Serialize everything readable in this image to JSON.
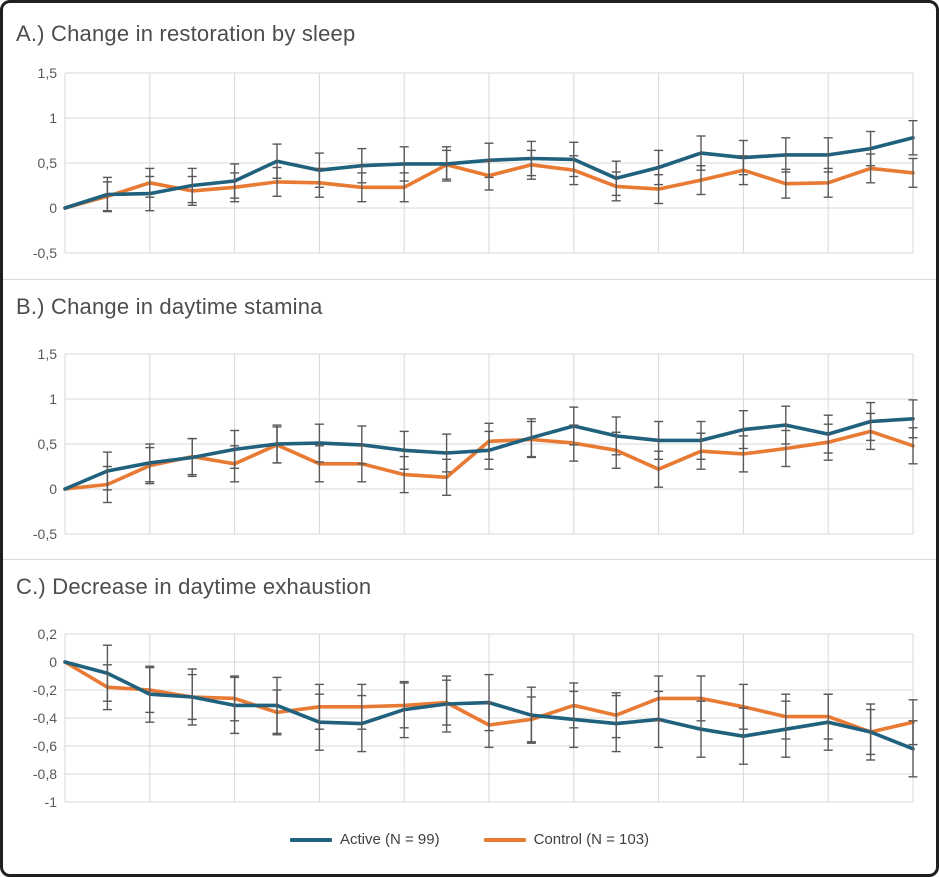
{
  "figure": {
    "background": "#ffffff",
    "border_color": "#1f1f1f",
    "gridline_color": "#d9d9d9",
    "errorbar_color": "#595959",
    "active_color": "#20617d",
    "control_color": "#e87a33"
  },
  "legend": {
    "position": "bottom-center",
    "items": [
      {
        "label": "Active (N = 99)",
        "color": "#20617d"
      },
      {
        "label": "Control (N = 103)",
        "color": "#e87a33"
      }
    ]
  },
  "chart_data": [
    {
      "id": "A",
      "type": "line",
      "title": "A.) Change in restoration by sleep",
      "x": [
        0,
        1,
        2,
        3,
        4,
        5,
        6,
        7,
        8,
        9,
        10,
        11,
        12,
        13,
        14,
        15,
        16,
        17,
        18,
        19,
        20
      ],
      "xlabel": "",
      "ylabel": "",
      "ylim": [
        -0.5,
        1.5
      ],
      "yticks": [
        {
          "v": 1.5,
          "label": "1,5"
        },
        {
          "v": 1.0,
          "label": "1"
        },
        {
          "v": 0.5,
          "label": "0,5"
        },
        {
          "v": 0.0,
          "label": "0"
        },
        {
          "v": -0.5,
          "label": "-0,5"
        }
      ],
      "grid": true,
      "series": [
        {
          "name": "Active (N = 99)",
          "color": "#20617d",
          "err": 0.19,
          "values": [
            0,
            0.15,
            0.16,
            0.25,
            0.3,
            0.52,
            0.42,
            0.47,
            0.49,
            0.49,
            0.53,
            0.55,
            0.54,
            0.33,
            0.45,
            0.61,
            0.56,
            0.59,
            0.59,
            0.66,
            0.78
          ]
        },
        {
          "name": "Control (N = 103)",
          "color": "#e87a33",
          "err": 0.16,
          "values": [
            0,
            0.13,
            0.28,
            0.19,
            0.23,
            0.29,
            0.28,
            0.23,
            0.23,
            0.48,
            0.36,
            0.48,
            0.42,
            0.24,
            0.21,
            0.31,
            0.42,
            0.27,
            0.28,
            0.44,
            0.39
          ]
        }
      ]
    },
    {
      "id": "B",
      "type": "line",
      "title": "B.) Change in daytime stamina",
      "x": [
        0,
        1,
        2,
        3,
        4,
        5,
        6,
        7,
        8,
        9,
        10,
        11,
        12,
        13,
        14,
        15,
        16,
        17,
        18,
        19,
        20
      ],
      "xlabel": "",
      "ylabel": "",
      "ylim": [
        -0.5,
        1.5
      ],
      "yticks": [
        {
          "v": 1.5,
          "label": "1,5"
        },
        {
          "v": 1.0,
          "label": "1"
        },
        {
          "v": 0.5,
          "label": "0,5"
        },
        {
          "v": 0.0,
          "label": "0"
        },
        {
          "v": -0.5,
          "label": "-0,5"
        }
      ],
      "grid": true,
      "series": [
        {
          "name": "Active (N = 99)",
          "color": "#20617d",
          "err": 0.21,
          "values": [
            0,
            0.2,
            0.29,
            0.35,
            0.44,
            0.5,
            0.51,
            0.49,
            0.43,
            0.4,
            0.43,
            0.57,
            0.7,
            0.59,
            0.54,
            0.54,
            0.66,
            0.71,
            0.61,
            0.75,
            0.78
          ]
        },
        {
          "name": "Control (N = 103)",
          "color": "#e87a33",
          "err": 0.2,
          "values": [
            0,
            0.05,
            0.26,
            0.36,
            0.28,
            0.49,
            0.28,
            0.28,
            0.16,
            0.13,
            0.53,
            0.55,
            0.51,
            0.43,
            0.22,
            0.42,
            0.39,
            0.45,
            0.52,
            0.64,
            0.48
          ]
        }
      ]
    },
    {
      "id": "C",
      "type": "line",
      "title": "C.) Decrease in daytime exhaustion",
      "x": [
        0,
        1,
        2,
        3,
        4,
        5,
        6,
        7,
        8,
        9,
        10,
        11,
        12,
        13,
        14,
        15,
        16,
        17,
        18,
        19,
        20
      ],
      "xlabel": "",
      "ylabel": "",
      "ylim": [
        -1.0,
        0.2
      ],
      "yticks": [
        {
          "v": 0.2,
          "label": "0,2"
        },
        {
          "v": 0.0,
          "label": "0"
        },
        {
          "v": -0.2,
          "label": "-0,2"
        },
        {
          "v": -0.4,
          "label": "-0,4"
        },
        {
          "v": -0.6,
          "label": "-0,6"
        },
        {
          "v": -0.8,
          "label": "-0,8"
        },
        {
          "v": -1.0,
          "label": "-1"
        }
      ],
      "grid": true,
      "series": [
        {
          "name": "Active (N = 99)",
          "color": "#20617d",
          "err": 0.2,
          "values": [
            0,
            -0.08,
            -0.23,
            -0.25,
            -0.31,
            -0.31,
            -0.43,
            -0.44,
            -0.34,
            -0.3,
            -0.29,
            -0.38,
            -0.41,
            -0.44,
            -0.41,
            -0.48,
            -0.53,
            -0.48,
            -0.43,
            -0.5,
            -0.62
          ]
        },
        {
          "name": "Control (N = 103)",
          "color": "#e87a33",
          "err": 0.16,
          "values": [
            0,
            -0.18,
            -0.2,
            -0.25,
            -0.26,
            -0.36,
            -0.32,
            -0.32,
            -0.31,
            -0.29,
            -0.45,
            -0.41,
            -0.31,
            -0.38,
            -0.26,
            -0.26,
            -0.32,
            -0.39,
            -0.39,
            -0.5,
            -0.43
          ]
        }
      ]
    }
  ]
}
